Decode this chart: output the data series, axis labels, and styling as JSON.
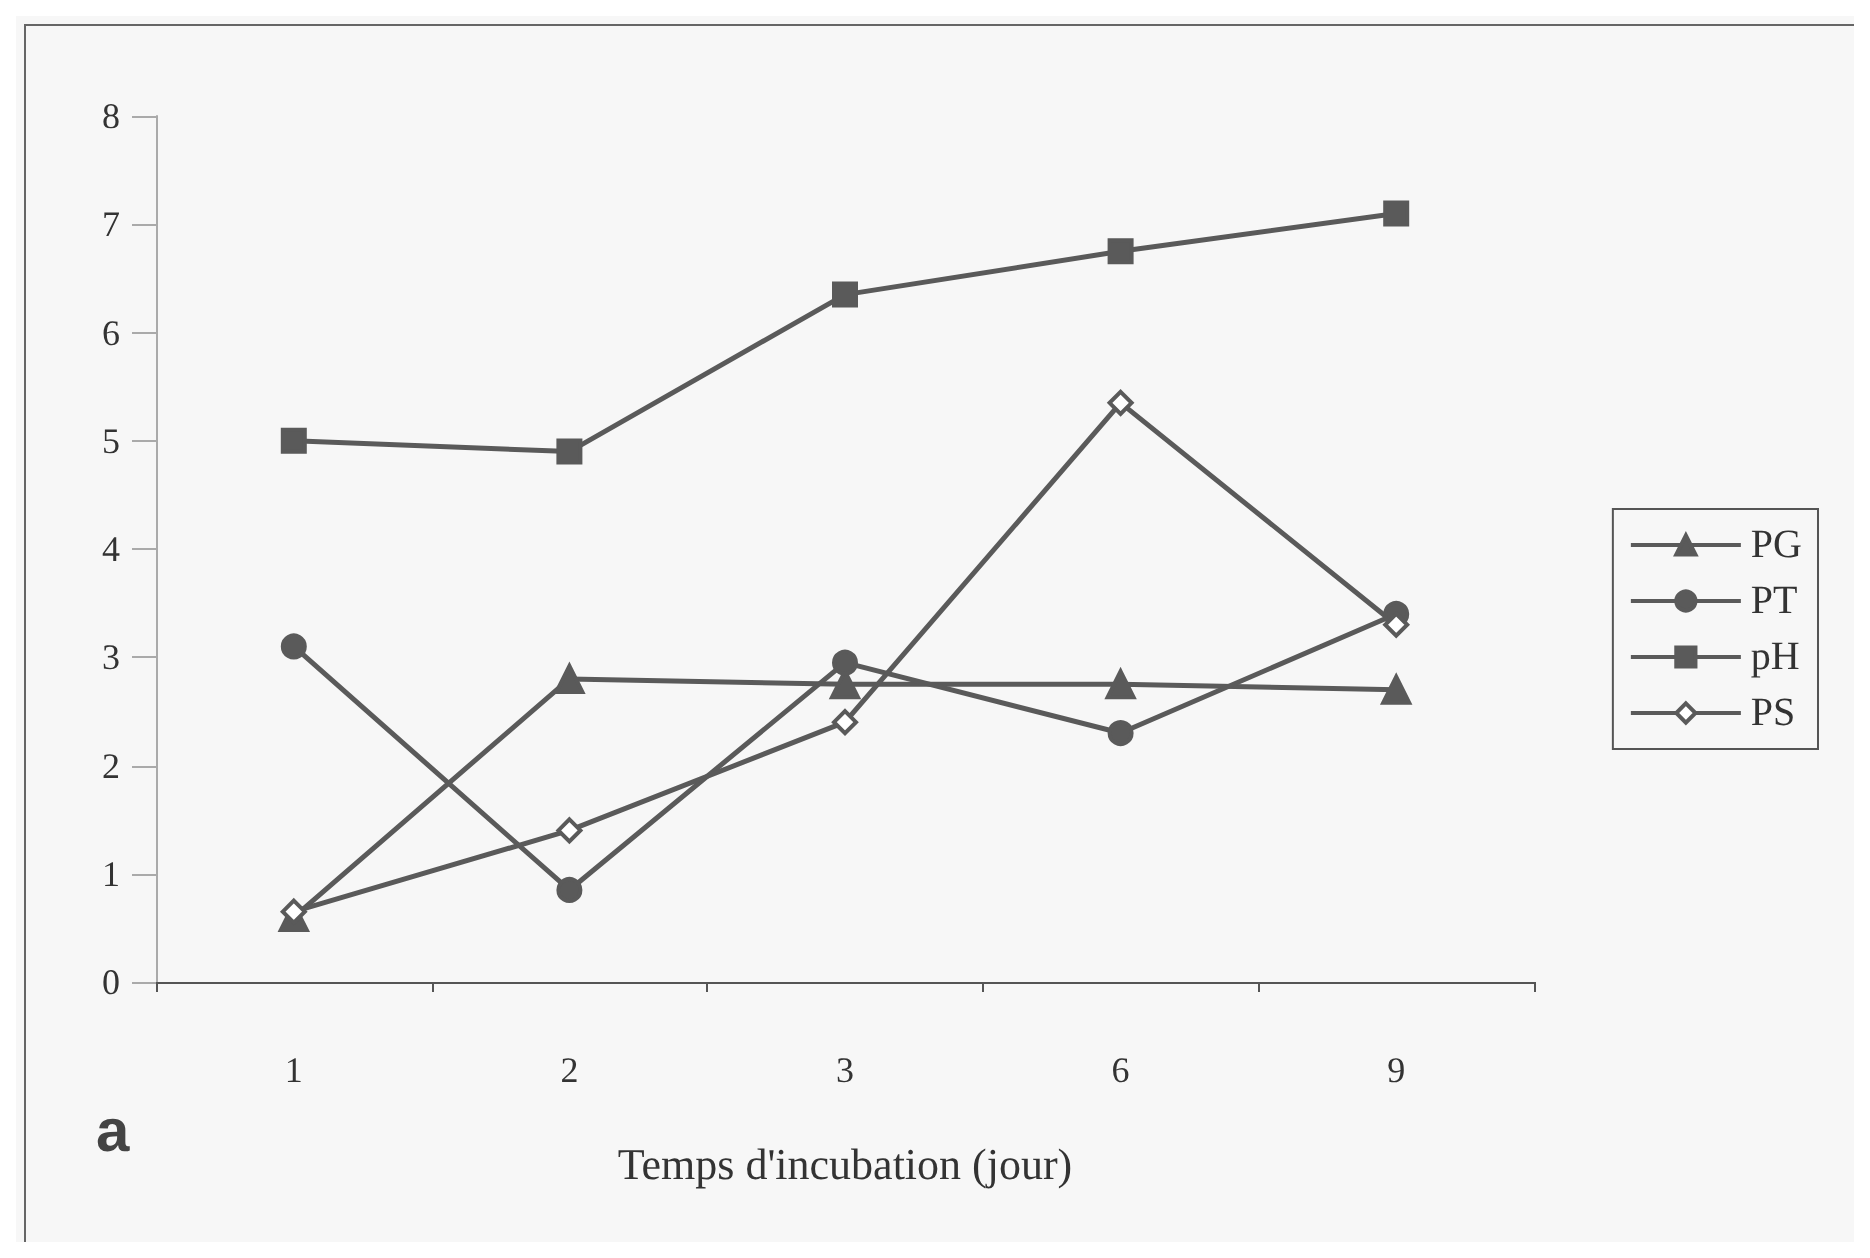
{
  "chart_data": {
    "type": "line",
    "xlabel": "Temps d'incubation (jour)",
    "annotations": [
      "a"
    ],
    "categories": [
      "1",
      "2",
      "3",
      "6",
      "9"
    ],
    "series": [
      {
        "name": "PG",
        "color": "#5a5a5a",
        "marker": "triangle",
        "values": [
          0.6,
          2.8,
          2.75,
          2.75,
          2.7
        ]
      },
      {
        "name": "PT",
        "color": "#5a5a5a",
        "marker": "circle",
        "values": [
          3.1,
          0.85,
          2.95,
          2.3,
          3.4
        ]
      },
      {
        "name": "pH",
        "color": "#5a5a5a",
        "marker": "square",
        "values": [
          5.0,
          4.9,
          6.35,
          6.75,
          7.1
        ]
      },
      {
        "name": "PS",
        "color": "#5a5a5a",
        "marker": "diamond",
        "values": [
          0.65,
          1.4,
          2.4,
          5.35,
          3.3
        ]
      }
    ],
    "ylim": [
      0,
      8
    ],
    "yticks": [
      0,
      1,
      2,
      3,
      4,
      5,
      6,
      7,
      8
    ],
    "grid": false,
    "legend": "right"
  }
}
